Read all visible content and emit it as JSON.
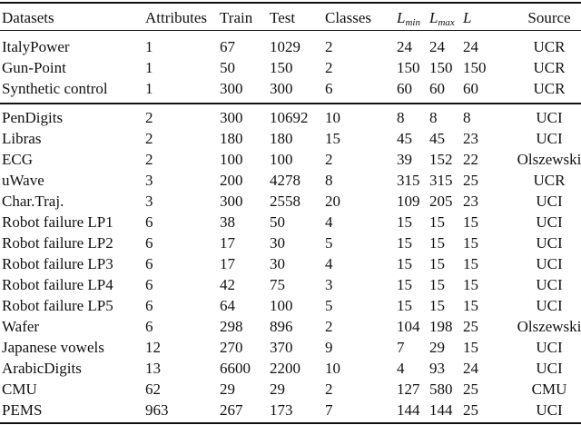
{
  "table": {
    "header": [
      "Datasets",
      "Attributes",
      "Train",
      "Test",
      "Classes",
      {
        "base": "L",
        "sub": "min"
      },
      {
        "base": "L",
        "sub": "max"
      },
      "L",
      "Source"
    ],
    "groups": [
      [
        [
          "ItalyPower",
          "1",
          "67",
          "1029",
          "2",
          "24",
          "24",
          "24",
          "UCR"
        ],
        [
          "Gun-Point",
          "1",
          "50",
          "150",
          "2",
          "150",
          "150",
          "150",
          "UCR"
        ],
        [
          "Synthetic control",
          "1",
          "300",
          "300",
          "6",
          "60",
          "60",
          "60",
          "UCR"
        ]
      ],
      [
        [
          "PenDigits",
          "2",
          "300",
          "10692",
          "10",
          "8",
          "8",
          "8",
          "UCI"
        ],
        [
          "Libras",
          "2",
          "180",
          "180",
          "15",
          "45",
          "45",
          "23",
          "UCI"
        ],
        [
          "ECG",
          "2",
          "100",
          "100",
          "2",
          "39",
          "152",
          "22",
          "Olszewski"
        ],
        [
          "uWave",
          "3",
          "200",
          "4278",
          "8",
          "315",
          "315",
          "25",
          "UCR"
        ],
        [
          "Char.Traj.",
          "3",
          "300",
          "2558",
          "20",
          "109",
          "205",
          "23",
          "UCI"
        ],
        [
          "Robot failure LP1",
          "6",
          "38",
          "50",
          "4",
          "15",
          "15",
          "15",
          "UCI"
        ],
        [
          "Robot failure LP2",
          "6",
          "17",
          "30",
          "5",
          "15",
          "15",
          "15",
          "UCI"
        ],
        [
          "Robot failure LP3",
          "6",
          "17",
          "30",
          "4",
          "15",
          "15",
          "15",
          "UCI"
        ],
        [
          "Robot failure LP4",
          "6",
          "42",
          "75",
          "3",
          "15",
          "15",
          "15",
          "UCI"
        ],
        [
          "Robot failure LP5",
          "6",
          "64",
          "100",
          "5",
          "15",
          "15",
          "15",
          "UCI"
        ],
        [
          "Wafer",
          "6",
          "298",
          "896",
          "2",
          "104",
          "198",
          "25",
          "Olszewski"
        ],
        [
          "Japanese vowels",
          "12",
          "270",
          "370",
          "9",
          "7",
          "29",
          "15",
          "UCI"
        ],
        [
          "ArabicDigits",
          "13",
          "6600",
          "2200",
          "10",
          "4",
          "93",
          "24",
          "UCI"
        ],
        [
          "CMU",
          "62",
          "29",
          "29",
          "2",
          "127",
          "580",
          "25",
          "CMU"
        ],
        [
          "PEMS",
          "963",
          "267",
          "173",
          "7",
          "144",
          "144",
          "25",
          "UCI"
        ]
      ]
    ]
  }
}
